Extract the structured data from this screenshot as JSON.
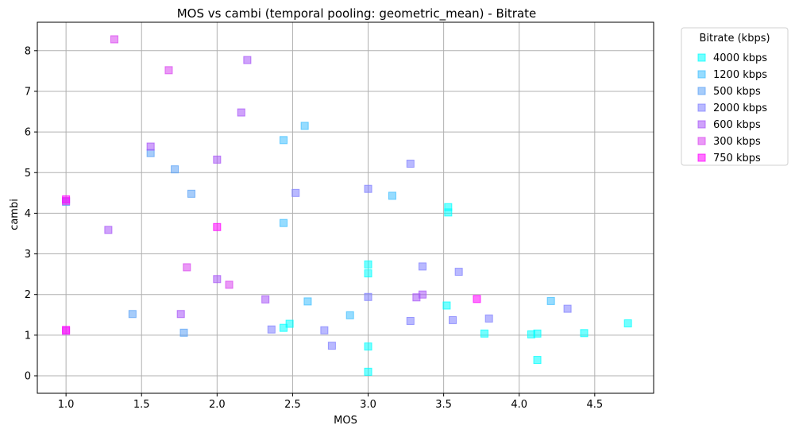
{
  "chart_data": {
    "type": "scatter",
    "title": "MOS vs cambi (temporal pooling: geometric_mean) - Bitrate",
    "xlabel": "MOS",
    "ylabel": "cambi",
    "xlim": [
      0.81,
      4.89
    ],
    "ylim": [
      -0.43,
      8.7
    ],
    "xticks": [
      1.0,
      1.5,
      2.0,
      2.5,
      3.0,
      3.5,
      4.0,
      4.5
    ],
    "xtick_labels": [
      "1.0",
      "1.5",
      "2.0",
      "2.5",
      "3.0",
      "3.5",
      "4.0",
      "4.5"
    ],
    "yticks": [
      0,
      1,
      2,
      3,
      4,
      5,
      6,
      7,
      8
    ],
    "ytick_labels": [
      "0",
      "1",
      "2",
      "3",
      "4",
      "5",
      "6",
      "7",
      "8"
    ],
    "grid": true,
    "marker": "square",
    "legend": {
      "title": "Bitrate (kbps)",
      "placement": "outside-top-right"
    },
    "series": [
      {
        "name": "4000 kbps",
        "color": "#00ffff",
        "points": [
          [
            3.0,
            0.1
          ],
          [
            3.0,
            0.72
          ],
          [
            3.0,
            2.52
          ],
          [
            3.0,
            2.74
          ],
          [
            3.53,
            4.15
          ],
          [
            3.53,
            4.02
          ],
          [
            3.52,
            1.73
          ],
          [
            3.77,
            1.04
          ],
          [
            4.08,
            1.02
          ],
          [
            4.12,
            1.04
          ],
          [
            4.12,
            0.39
          ],
          [
            4.43,
            1.05
          ],
          [
            4.72,
            1.29
          ],
          [
            2.48,
            1.28
          ],
          [
            2.44,
            1.18
          ]
        ]
      },
      {
        "name": "1200 kbps",
        "color": "#40bfff",
        "points": [
          [
            2.44,
            5.8
          ],
          [
            2.58,
            6.15
          ],
          [
            2.44,
            3.76
          ],
          [
            3.16,
            4.43
          ],
          [
            4.21,
            1.84
          ],
          [
            2.6,
            1.83
          ],
          [
            2.88,
            1.49
          ]
        ]
      },
      {
        "name": "500 kbps",
        "color": "#5ca3f5",
        "points": [
          [
            1.56,
            5.48
          ],
          [
            1.72,
            5.08
          ],
          [
            1.83,
            4.48
          ],
          [
            1.44,
            1.52
          ],
          [
            1.78,
            1.06
          ],
          [
            1.0,
            4.28
          ]
        ]
      },
      {
        "name": "2000 kbps",
        "color": "#8080ff",
        "points": [
          [
            2.52,
            4.5
          ],
          [
            3.0,
            4.6
          ],
          [
            3.28,
            5.22
          ],
          [
            3.36,
            2.69
          ],
          [
            3.6,
            2.56
          ],
          [
            3.0,
            1.94
          ],
          [
            3.28,
            1.35
          ],
          [
            3.56,
            1.37
          ],
          [
            3.8,
            1.41
          ],
          [
            4.32,
            1.65
          ],
          [
            2.36,
            1.14
          ],
          [
            2.71,
            1.12
          ],
          [
            2.76,
            0.74
          ]
        ]
      },
      {
        "name": "600 kbps",
        "color": "#a855f7",
        "points": [
          [
            2.2,
            7.77
          ],
          [
            2.16,
            6.48
          ],
          [
            1.56,
            5.64
          ],
          [
            2.0,
            5.32
          ],
          [
            1.28,
            3.59
          ],
          [
            2.0,
            2.38
          ],
          [
            1.76,
            1.52
          ],
          [
            2.32,
            1.88
          ],
          [
            3.32,
            1.93
          ],
          [
            3.36,
            2.0
          ]
        ]
      },
      {
        "name": "300 kbps",
        "color": "#d946ef",
        "points": [
          [
            1.32,
            8.28
          ],
          [
            1.68,
            7.52
          ],
          [
            1.8,
            2.67
          ],
          [
            2.08,
            2.24
          ],
          [
            1.0,
            1.1
          ],
          [
            1.0,
            4.3
          ]
        ]
      },
      {
        "name": "750 kbps",
        "color": "#ff00ff",
        "points": [
          [
            2.0,
            3.66
          ],
          [
            3.72,
            1.89
          ],
          [
            1.0,
            1.13
          ],
          [
            1.0,
            4.34
          ]
        ]
      }
    ]
  }
}
